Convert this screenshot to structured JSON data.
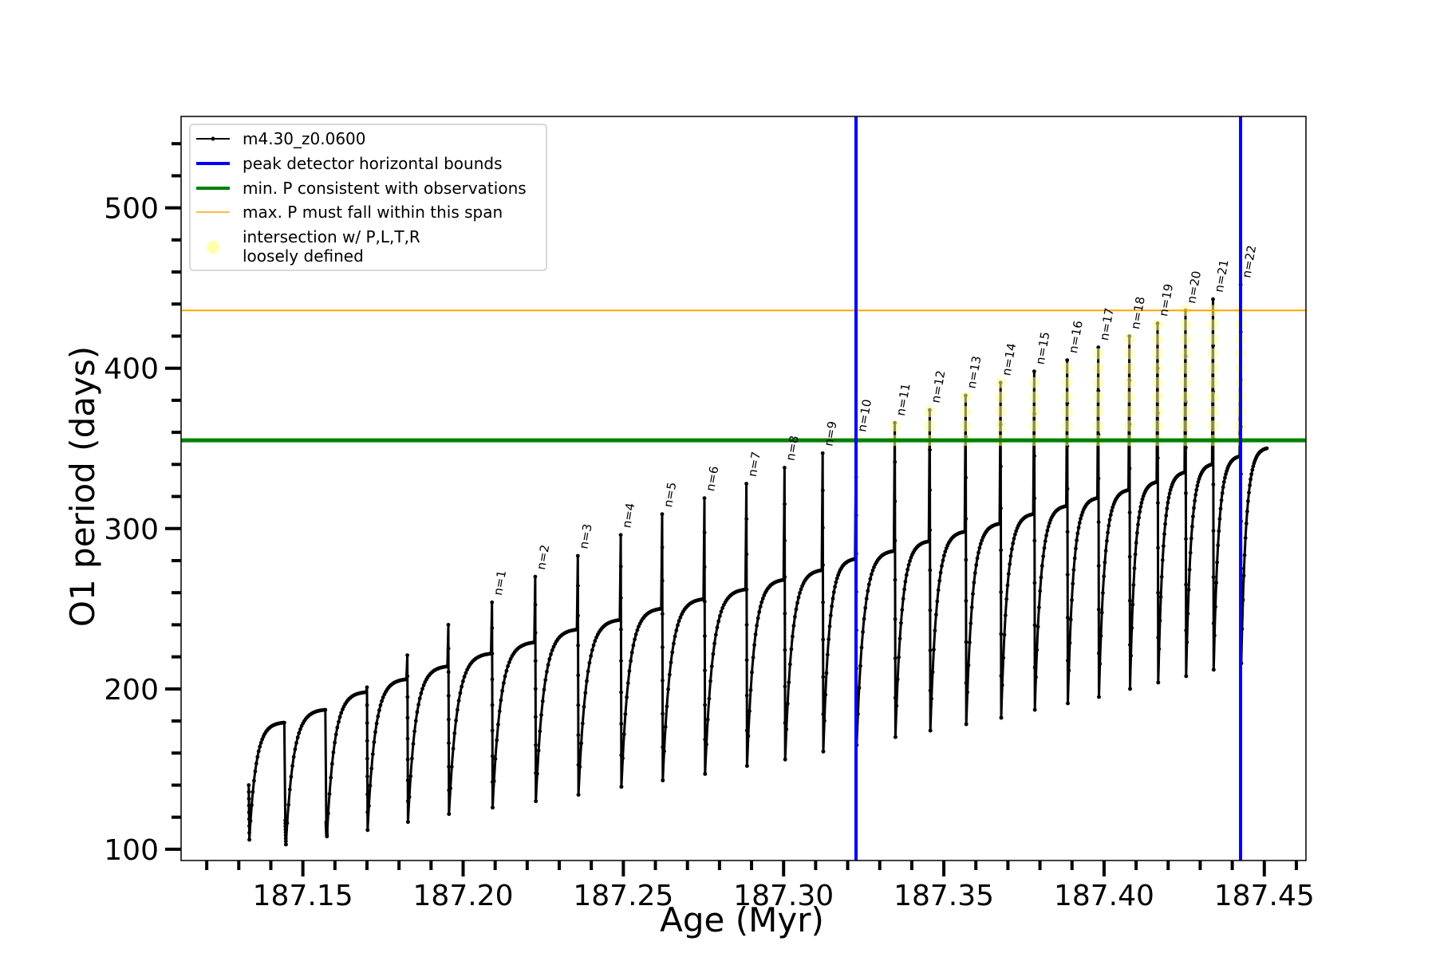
{
  "chart_data": {
    "type": "line",
    "title": "",
    "xlabel": "Age (Myr)",
    "ylabel": "O1 period (days)",
    "xlim": [
      187.112,
      187.463
    ],
    "ylim": [
      93,
      557
    ],
    "x_major_ticks": [
      187.15,
      187.2,
      187.25,
      187.3,
      187.35,
      187.4,
      187.45
    ],
    "x_tick_labels": [
      "187.15",
      "187.20",
      "187.25",
      "187.30",
      "187.35",
      "187.40",
      "187.45"
    ],
    "y_major_ticks": [
      100,
      200,
      300,
      400,
      500
    ],
    "y_tick_labels": [
      "100",
      "200",
      "300",
      "400",
      "500"
    ],
    "grid": false,
    "legend_position": "upper-left",
    "legend": [
      {
        "label": "m4.30_z0.0600",
        "color": "#000000",
        "style": "line-dot"
      },
      {
        "label": "peak detector horizontal bounds",
        "color": "#0000ff",
        "style": "thick-line"
      },
      {
        "label": "min. P consistent with observations",
        "color": "#008000",
        "style": "thick-line"
      },
      {
        "label": "max. P must fall within this span",
        "color": "#ffa500",
        "style": "thin-line"
      },
      {
        "label": "intersection w/ P,L,T,R",
        "label2": "loosely defined",
        "color": "#ffffaa",
        "style": "marker"
      }
    ],
    "vlines": [
      {
        "name": "peak detector horizontal bounds",
        "x": 187.3226,
        "color": "#0000ff"
      },
      {
        "name": "peak detector horizontal bounds",
        "x": 187.4426,
        "color": "#0000ff"
      }
    ],
    "hlines": [
      {
        "name": "min. P consistent with observations",
        "y": 355,
        "color": "#008000"
      },
      {
        "name": "max. P must fall within this span",
        "y": 436,
        "color": "#ffa500"
      }
    ],
    "series": [
      {
        "name": "m4.30_z0.0600",
        "color": "#000000",
        "pulses": [
          {
            "x": 187.1331,
            "pre": 140,
            "min": 106,
            "end": 179
          },
          {
            "x": 187.1445,
            "pre": 118,
            "min": 103,
            "end": 187
          },
          {
            "x": 187.1573,
            "pre": 117,
            "min": 108,
            "end": 198
          },
          {
            "x": 187.17,
            "pre": 201,
            "min": 112,
            "end": 206
          },
          {
            "x": 187.1826,
            "pre": 221,
            "min": 117,
            "end": 214
          },
          {
            "x": 187.1954,
            "pre": 240,
            "min": 122,
            "end": 222
          },
          {
            "x": 187.209,
            "pre": 254,
            "min": 126,
            "end": 229
          },
          {
            "x": 187.2225,
            "pre": 270,
            "min": 130,
            "end": 237
          },
          {
            "x": 187.2358,
            "pre": 283,
            "min": 134,
            "end": 243
          },
          {
            "x": 187.2492,
            "pre": 296,
            "min": 139,
            "end": 250
          },
          {
            "x": 187.2621,
            "pre": 309,
            "min": 143,
            "end": 256
          },
          {
            "x": 187.2753,
            "pre": 319,
            "min": 147,
            "end": 262
          },
          {
            "x": 187.2884,
            "pre": 328,
            "min": 152,
            "end": 268
          },
          {
            "x": 187.3003,
            "pre": 338,
            "min": 156,
            "end": 274
          },
          {
            "x": 187.3122,
            "pre": 347,
            "min": 161,
            "end": 281
          },
          {
            "x": 187.3226,
            "pre": 356,
            "min": 165,
            "end": 286
          },
          {
            "x": 187.3347,
            "pre": 366,
            "min": 170,
            "end": 292
          },
          {
            "x": 187.3456,
            "pre": 374,
            "min": 174,
            "end": 298
          },
          {
            "x": 187.3568,
            "pre": 383,
            "min": 178,
            "end": 303
          },
          {
            "x": 187.3677,
            "pre": 391,
            "min": 182,
            "end": 309
          },
          {
            "x": 187.3782,
            "pre": 398,
            "min": 187,
            "end": 314
          },
          {
            "x": 187.3885,
            "pre": 405,
            "min": 191,
            "end": 319
          },
          {
            "x": 187.3982,
            "pre": 413,
            "min": 195,
            "end": 324
          },
          {
            "x": 187.4079,
            "pre": 420,
            "min": 200,
            "end": 329
          },
          {
            "x": 187.4167,
            "pre": 428,
            "min": 204,
            "end": 335
          },
          {
            "x": 187.4254,
            "pre": 436,
            "min": 208,
            "end": 340
          },
          {
            "x": 187.434,
            "pre": 443,
            "min": 212,
            "end": 345
          },
          {
            "x": 187.4426,
            "pre": 452,
            "min": 216,
            "end": 350
          }
        ]
      }
    ],
    "peak_labels": [
      {
        "label": "n=1",
        "x": 187.209,
        "y": 254
      },
      {
        "label": "n=2",
        "x": 187.2225,
        "y": 270
      },
      {
        "label": "n=3",
        "x": 187.2358,
        "y": 283
      },
      {
        "label": "n=4",
        "x": 187.2492,
        "y": 296
      },
      {
        "label": "n=5",
        "x": 187.2621,
        "y": 309
      },
      {
        "label": "n=6",
        "x": 187.2753,
        "y": 319
      },
      {
        "label": "n=7",
        "x": 187.2884,
        "y": 328
      },
      {
        "label": "n=8",
        "x": 187.3003,
        "y": 338
      },
      {
        "label": "n=9",
        "x": 187.3122,
        "y": 347
      },
      {
        "label": "n=10",
        "x": 187.3226,
        "y": 356
      },
      {
        "label": "n=11",
        "x": 187.3347,
        "y": 366
      },
      {
        "label": "n=12",
        "x": 187.3456,
        "y": 374
      },
      {
        "label": "n=13",
        "x": 187.3568,
        "y": 383
      },
      {
        "label": "n=14",
        "x": 187.3677,
        "y": 391
      },
      {
        "label": "n=15",
        "x": 187.3782,
        "y": 398
      },
      {
        "label": "n=16",
        "x": 187.3885,
        "y": 405
      },
      {
        "label": "n=17",
        "x": 187.3982,
        "y": 413
      },
      {
        "label": "n=18",
        "x": 187.4079,
        "y": 420
      },
      {
        "label": "n=19",
        "x": 187.4167,
        "y": 428
      },
      {
        "label": "n=20",
        "x": 187.4254,
        "y": 436
      },
      {
        "label": "n=21",
        "x": 187.434,
        "y": 443
      },
      {
        "label": "n=22",
        "x": 187.4426,
        "y": 452
      }
    ]
  }
}
